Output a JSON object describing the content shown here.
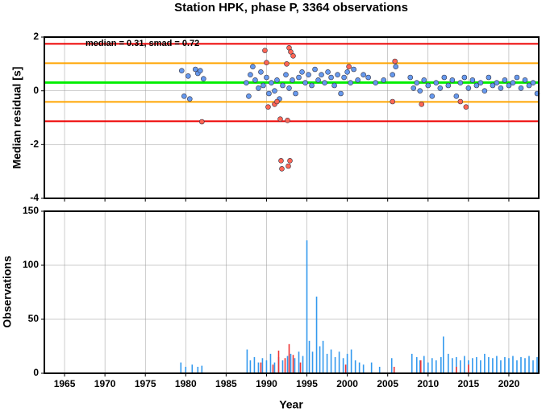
{
  "chart_data": [
    {
      "type": "scatter",
      "title": "Station HPK, phase P, 3364 observations",
      "ylabel": "Median residual [s]",
      "annotation": "median = 0.31, smad = 0.72",
      "xlim": [
        1962.5,
        2023.7
      ],
      "xticks": [
        1965,
        1970,
        1975,
        1980,
        1985,
        1990,
        1995,
        2000,
        2005,
        2010,
        2015,
        2020
      ],
      "ylim": [
        -4,
        2
      ],
      "yticks": [
        -4,
        -2,
        0,
        2
      ],
      "grid": true,
      "ref_lines": [
        {
          "value": 1.75,
          "color": "#ee0000"
        },
        {
          "value": 1.03,
          "color": "#ffa500"
        },
        {
          "value": 0.31,
          "color": "#00ee00"
        },
        {
          "value": -0.41,
          "color": "#ffa500"
        },
        {
          "value": -1.13,
          "color": "#ee0000"
        }
      ],
      "series": [
        {
          "color": "#6699ee",
          "x": [
            1979.5,
            1979.8,
            1980.3,
            1980.5,
            1981.2,
            1981.5,
            1981.8,
            1982.2,
            1987.5,
            1987.8,
            1988,
            1988.3,
            1988.6,
            1989,
            1989.3,
            1989.6,
            1990,
            1990.3,
            1990.6,
            1991,
            1991.3,
            1991.6,
            1992,
            1992.4,
            1992.8,
            1993.2,
            1993.6,
            1994,
            1994.4,
            1994.8,
            1995.2,
            1995.6,
            1996,
            1996.4,
            1996.8,
            1997.2,
            1997.6,
            1998,
            1998.4,
            1998.8,
            1999.2,
            1999.6,
            2000,
            2000.4,
            2000.8,
            2001.3,
            2002,
            2002.6,
            2003.5,
            2004.5,
            2005.6,
            2006,
            2007.8,
            2008.2,
            2008.6,
            2009,
            2009.5,
            2010,
            2010.5,
            2011,
            2011.5,
            2012,
            2012.5,
            2013,
            2013.5,
            2014,
            2014.5,
            2015,
            2015.5,
            2016,
            2016.5,
            2017,
            2017.5,
            2018,
            2018.5,
            2019,
            2019.5,
            2020,
            2020.5,
            2021,
            2021.5,
            2022,
            2022.5,
            2023,
            2023.5
          ],
          "values": [
            0.75,
            -0.2,
            0.55,
            -0.3,
            0.8,
            0.65,
            0.75,
            0.45,
            0.3,
            -0.2,
            0.6,
            0.9,
            0.4,
            0.1,
            0.7,
            0.2,
            0.5,
            -0.1,
            0.3,
            0.0,
            0.4,
            -0.3,
            0.2,
            0.6,
            0.1,
            0.4,
            -0.1,
            0.5,
            0.7,
            0.3,
            0.6,
            0.2,
            0.8,
            0.4,
            0.6,
            0.3,
            0.7,
            0.5,
            0.2,
            0.6,
            -0.1,
            0.5,
            0.7,
            0.3,
            0.8,
            0.4,
            0.6,
            0.5,
            0.3,
            0.4,
            0.6,
            0.9,
            0.5,
            0.1,
            0.3,
            0.0,
            0.4,
            0.2,
            -0.2,
            0.3,
            0.1,
            0.5,
            0.2,
            0.4,
            -0.2,
            0.3,
            0.5,
            0.1,
            0.4,
            0.2,
            0.3,
            0.0,
            0.5,
            0.2,
            0.3,
            0.1,
            0.4,
            0.2,
            0.3,
            0.5,
            0.1,
            0.4,
            0.2,
            0.3,
            -0.1
          ]
        },
        {
          "color": "#ff6655",
          "x": [
            1982,
            1989.8,
            1990,
            1990.2,
            1991,
            1991.3,
            1991.7,
            1991.8,
            1991.9,
            1992.6,
            1992.7,
            1992.9,
            1992.8,
            1993,
            1993.3,
            1992.5,
            2000.2,
            2005.6,
            2005.9,
            2009.2,
            2014,
            2014.7
          ],
          "values": [
            -1.15,
            1.5,
            1.05,
            -0.6,
            -0.5,
            -0.4,
            -1.05,
            -2.6,
            -2.9,
            -1.1,
            -2.8,
            -2.6,
            1.6,
            1.45,
            1.3,
            1.0,
            0.9,
            -0.4,
            1.1,
            -0.5,
            -0.4,
            -0.6
          ]
        }
      ]
    },
    {
      "type": "bar",
      "xlabel": "Year",
      "ylabel": "Observations",
      "xlim": [
        1962.5,
        2023.7
      ],
      "xticks": [
        1965,
        1970,
        1975,
        1980,
        1985,
        1990,
        1995,
        2000,
        2005,
        2010,
        2015,
        2020
      ],
      "ylim": [
        0,
        150
      ],
      "yticks": [
        0,
        50,
        100,
        150
      ],
      "grid": true,
      "series": [
        {
          "color": "#3399ee",
          "x": [
            1979.4,
            1980,
            1980.8,
            1981.5,
            1982,
            1987.6,
            1988,
            1988.5,
            1989,
            1989.5,
            1990,
            1990.5,
            1991,
            1991.5,
            1992,
            1992.6,
            1993,
            1993.5,
            1994,
            1994.5,
            1995,
            1995.3,
            1995.7,
            1996.2,
            1996.6,
            1997,
            1997.5,
            1998,
            1998.5,
            1999,
            1999.5,
            2000,
            2000.5,
            2001,
            2001.5,
            2002,
            2003,
            2004,
            2005.5,
            2008,
            2008.6,
            2009,
            2009.5,
            2010,
            2010.5,
            2011,
            2011.6,
            2011.9,
            2012.5,
            2013,
            2013.5,
            2014,
            2014.5,
            2015,
            2015.5,
            2016,
            2016.5,
            2017,
            2017.5,
            2018,
            2018.5,
            2019,
            2019.5,
            2020,
            2020.5,
            2021,
            2021.5,
            2022,
            2022.5,
            2023,
            2023.5
          ],
          "values": [
            10,
            6,
            8,
            6,
            7,
            22,
            12,
            15,
            10,
            14,
            12,
            18,
            10,
            15,
            12,
            16,
            18,
            14,
            20,
            16,
            123,
            30,
            20,
            71,
            25,
            30,
            18,
            22,
            15,
            20,
            14,
            18,
            22,
            12,
            10,
            8,
            10,
            6,
            14,
            18,
            15,
            12,
            16,
            10,
            14,
            12,
            15,
            34,
            18,
            14,
            15,
            12,
            16,
            12,
            14,
            15,
            12,
            18,
            15,
            14,
            16,
            12,
            15,
            14,
            16,
            12,
            15,
            14,
            16,
            12,
            15
          ]
        },
        {
          "color": "#ee3333",
          "x": [
            1989.3,
            1990.8,
            1991.5,
            1992.3,
            1992.8,
            1993.3,
            1994.2,
            1999.8,
            2005.8,
            2009.1,
            2013.5,
            2015
          ],
          "values": [
            10,
            8,
            21,
            14,
            27,
            17,
            10,
            8,
            6,
            12,
            6,
            8
          ]
        }
      ]
    }
  ]
}
